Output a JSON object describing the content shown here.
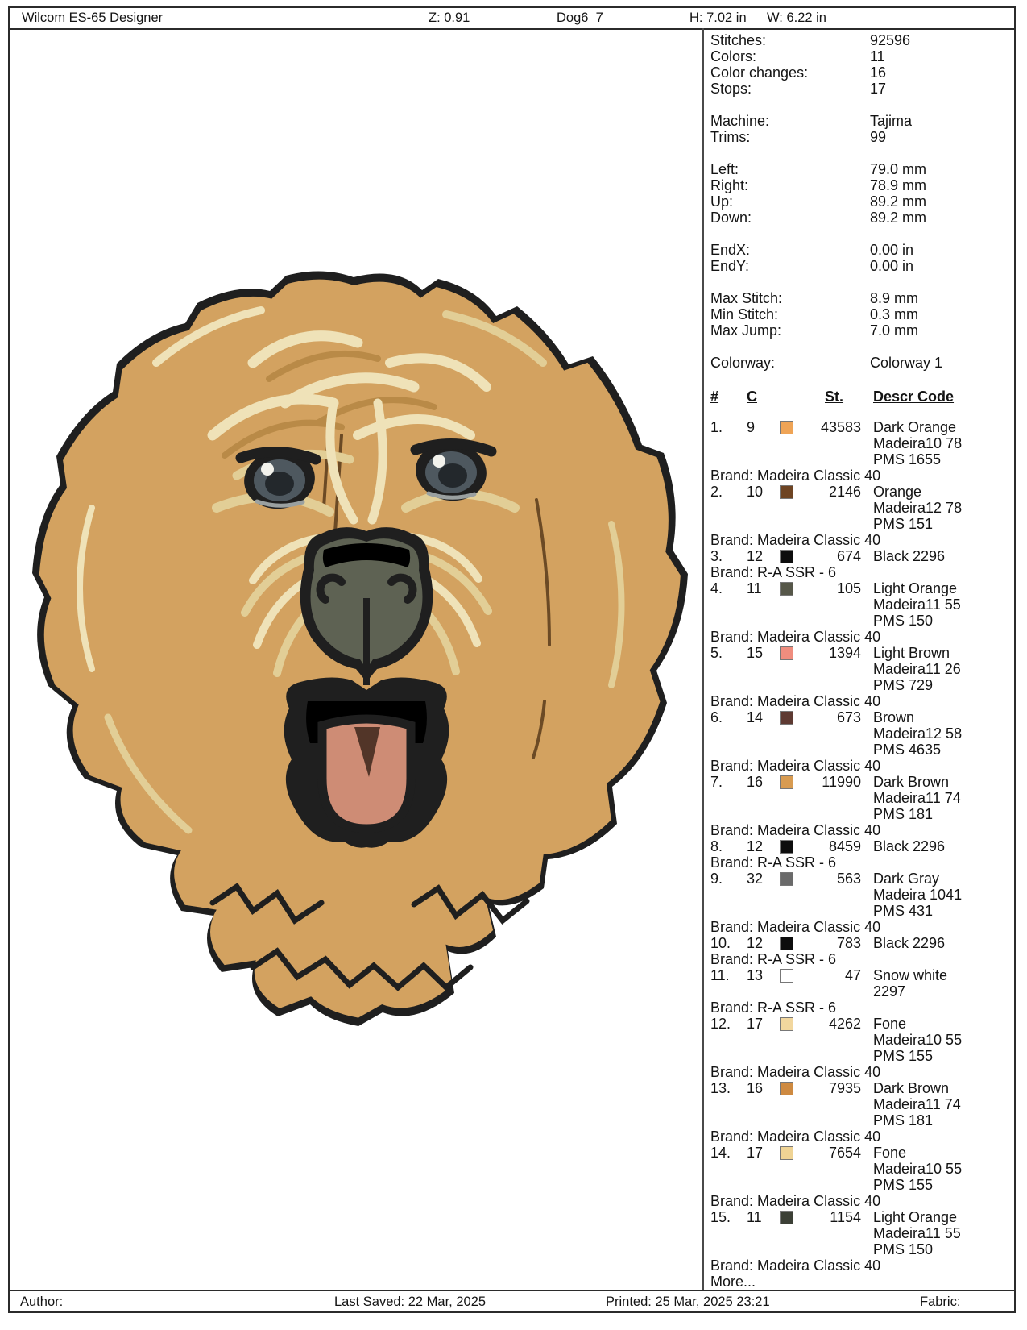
{
  "header": {
    "app_title": "Wilcom ES-65 Designer",
    "zoom": "Z: 0.91",
    "doc_name": "Dog6  7",
    "height": "H: 7.02 in",
    "width": "W: 6.22 in"
  },
  "footer": {
    "author": "Author:",
    "last_saved": "Last Saved: 22 Mar, 2025",
    "printed": "Printed: 25 Mar, 2025 23:21",
    "fabric": "Fabric:"
  },
  "panel": {
    "summary_groups": [
      [
        {
          "label": "Stitches:",
          "value": "92596"
        },
        {
          "label": "Colors:",
          "value": "11"
        },
        {
          "label": "Color changes:",
          "value": "16"
        },
        {
          "label": "Stops:",
          "value": "17"
        }
      ],
      [
        {
          "label": "Machine:",
          "value": "Tajima"
        },
        {
          "label": "Trims:",
          "value": "99"
        }
      ],
      [
        {
          "label": "Left:",
          "value": "79.0 mm"
        },
        {
          "label": "Right:",
          "value": "78.9 mm"
        },
        {
          "label": "Up:",
          "value": "89.2 mm"
        },
        {
          "label": "Down:",
          "value": "89.2 mm"
        }
      ],
      [
        {
          "label": "EndX:",
          "value": "0.00 in"
        },
        {
          "label": "EndY:",
          "value": "0.00 in"
        }
      ],
      [
        {
          "label": "Max Stitch:",
          "value": "8.9 mm"
        },
        {
          "label": "Min Stitch:",
          "value": "0.3 mm"
        },
        {
          "label": "Max Jump:",
          "value": "7.0 mm"
        }
      ],
      [
        {
          "label": "Colorway:",
          "value": "Colorway 1"
        }
      ]
    ],
    "table": {
      "headers": {
        "num": "#",
        "c": "C",
        "st": "St.",
        "descr": "Descr Code"
      },
      "rows": [
        {
          "num": "1.",
          "c": "9",
          "swatch": "#EFA456",
          "st": "43583",
          "desc": [
            "Dark Orange",
            "Madeira10 78",
            "PMS 1655"
          ],
          "brand": "Brand: Madeira Classic 40"
        },
        {
          "num": "2.",
          "c": "10",
          "swatch": "#6E4423",
          "st": "2146",
          "desc": [
            "Orange",
            "Madeira12 78",
            "PMS 151"
          ],
          "brand": "Brand: Madeira Classic 40"
        },
        {
          "num": "3.",
          "c": "12",
          "swatch": "#0D0D0D",
          "st": "674",
          "desc": [
            "Black 2296"
          ],
          "brand": "Brand: R-A SSR - 6"
        },
        {
          "num": "4.",
          "c": "11",
          "swatch": "#565749",
          "st": "105",
          "desc": [
            "Light Orange",
            "Madeira11 55",
            "PMS 150"
          ],
          "brand": "Brand: Madeira Classic 40"
        },
        {
          "num": "5.",
          "c": "15",
          "swatch": "#EF8D7E",
          "st": "1394",
          "desc": [
            "Light Brown",
            "Madeira11 26",
            "PMS 729"
          ],
          "brand": "Brand: Madeira Classic 40"
        },
        {
          "num": "6.",
          "c": "14",
          "swatch": "#5E3A32",
          "st": "673",
          "desc": [
            "Brown",
            "Madeira12 58",
            "PMS 4635"
          ],
          "brand": "Brand: Madeira Classic 40"
        },
        {
          "num": "7.",
          "c": "16",
          "swatch": "#D89B51",
          "st": "11990",
          "desc": [
            "Dark Brown",
            "Madeira11 74",
            "PMS 181"
          ],
          "brand": "Brand: Madeira Classic 40"
        },
        {
          "num": "8.",
          "c": "12",
          "swatch": "#0D0D0D",
          "st": "8459",
          "desc": [
            "Black 2296"
          ],
          "brand": "Brand: R-A SSR - 6"
        },
        {
          "num": "9.",
          "c": "32",
          "swatch": "#6A6A6A",
          "st": "563",
          "desc": [
            "Dark Gray",
            "Madeira 1041",
            "PMS 431"
          ],
          "brand": "Brand: Madeira Classic 40"
        },
        {
          "num": "10.",
          "c": "12",
          "swatch": "#0D0D0D",
          "st": "783",
          "desc": [
            "Black 2296"
          ],
          "brand": "Brand: R-A SSR - 6"
        },
        {
          "num": "11.",
          "c": "13",
          "swatch": "#FFFFFF",
          "st": "47",
          "desc": [
            "Snow white",
            "2297"
          ],
          "brand": "Brand: R-A SSR - 6"
        },
        {
          "num": "12.",
          "c": "17",
          "swatch": "#F2D79E",
          "st": "4262",
          "desc": [
            "Fone",
            "Madeira10 55",
            "PMS 155"
          ],
          "brand": "Brand: Madeira Classic 40"
        },
        {
          "num": "13.",
          "c": "16",
          "swatch": "#CE8A41",
          "st": "7935",
          "desc": [
            "Dark Brown",
            "Madeira11 74",
            "PMS 181"
          ],
          "brand": "Brand: Madeira Classic 40"
        },
        {
          "num": "14.",
          "c": "17",
          "swatch": "#EFD394",
          "st": "7654",
          "desc": [
            "Fone",
            "Madeira10 55",
            "PMS 155"
          ],
          "brand": "Brand: Madeira Classic 40"
        },
        {
          "num": "15.",
          "c": "11",
          "swatch": "#3C4036",
          "st": "1154",
          "desc": [
            "Light Orange",
            "Madeira11 55",
            "PMS 150"
          ],
          "brand": "Brand: Madeira Classic 40"
        }
      ],
      "more": "More..."
    }
  },
  "artwork": {
    "subject": "goldendoodle-dog-head-embroidery",
    "colors": {
      "outline": "#1F1F1F",
      "fur": "#D3A260",
      "fur_mid": "#C2914C",
      "fur_dark": "#A87C3F",
      "fur_shadow": "#8F6536",
      "hatch": "#6B4A25",
      "cream": "#EFE2B8",
      "cream2": "#E2CE96",
      "tan": "#B98A47",
      "nose": "#5E6253",
      "nose_hi": "#A9B09A",
      "eye": "#4E585F",
      "pupil": "#23282C",
      "tongue": "#CE8C75",
      "mouth_brown": "#6F4C3B",
      "notch": "#523528"
    }
  }
}
